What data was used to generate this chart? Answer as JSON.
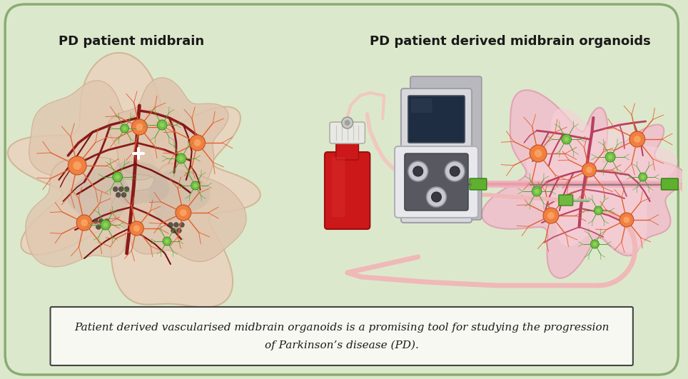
{
  "bg_color": "#dce8cc",
  "title_left": "PD patient midbrain",
  "title_right": "PD patient derived midbrain organoids",
  "caption_line1": "Patient derived vascularised midbrain organoids is a promising tool for studying the progression",
  "caption_line2": "of Parkinson’s disease (PD).",
  "title_fontsize": 13,
  "caption_fontsize": 11,
  "fig_width": 9.64,
  "fig_height": 5.31
}
